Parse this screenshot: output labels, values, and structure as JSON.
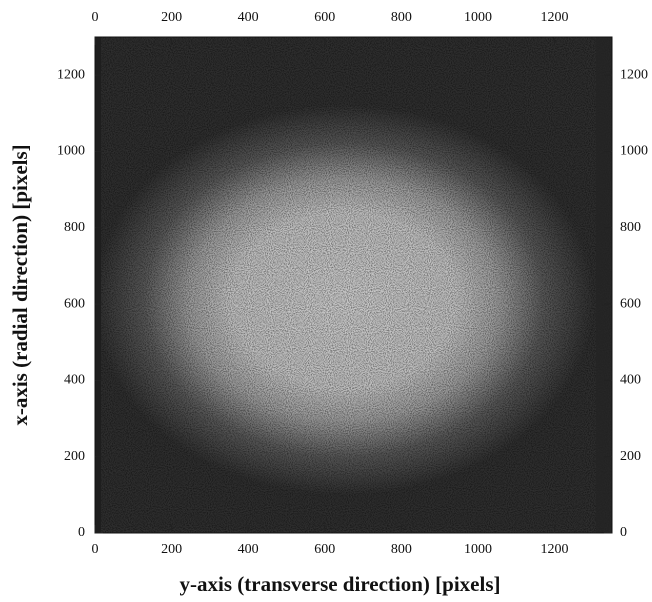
{
  "chart_data": {
    "type": "image",
    "xlabel": "y-axis (transverse direction) [pixels]",
    "ylabel": "x-axis (radial direction) [pixels]",
    "xlim": [
      0,
      1350
    ],
    "ylim": [
      0,
      1300
    ],
    "xticks": [
      0,
      200,
      400,
      600,
      800,
      1000,
      1200
    ],
    "yticks": [
      0,
      200,
      400,
      600,
      800,
      1000,
      1200
    ]
  }
}
